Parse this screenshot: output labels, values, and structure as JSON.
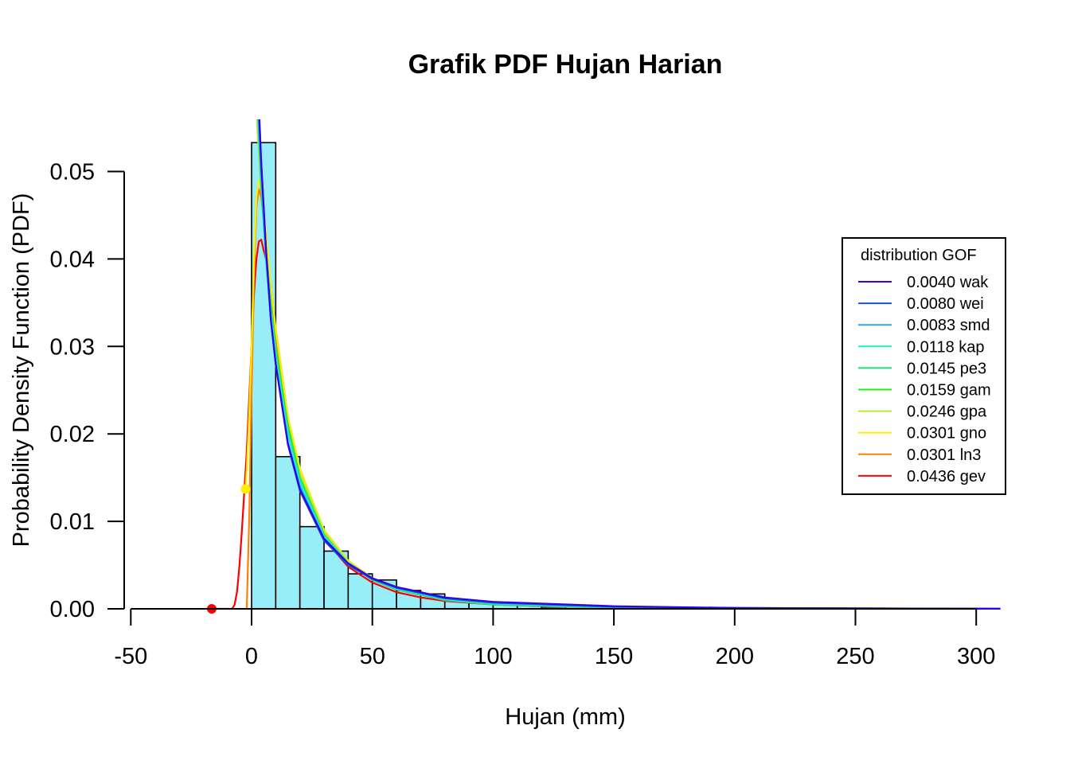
{
  "chart_data": {
    "type": "histogram-with-density-lines",
    "title": "Grafik PDF Hujan Harian",
    "xlabel": "Hujan (mm)",
    "ylabel": "Probability Density Function (PDF)",
    "xlim": [
      -50,
      310
    ],
    "ylim": [
      0,
      0.055
    ],
    "x_ticks": [
      -50,
      0,
      50,
      100,
      150,
      200,
      250,
      300
    ],
    "x_tick_labels": [
      "-50",
      "0",
      "50",
      "100",
      "150",
      "200",
      "250",
      "300"
    ],
    "y_ticks": [
      0,
      0.01,
      0.02,
      0.03,
      0.04,
      0.05
    ],
    "y_tick_labels": [
      "0.00",
      "0.01",
      "0.02",
      "0.03",
      "0.04",
      "0.05"
    ],
    "histogram": {
      "fill": "#98eef8",
      "bins": [
        {
          "x0": 0,
          "x1": 10,
          "density": 0.0533
        },
        {
          "x0": 10,
          "x1": 20,
          "density": 0.0174
        },
        {
          "x0": 20,
          "x1": 30,
          "density": 0.0094
        },
        {
          "x0": 30,
          "x1": 40,
          "density": 0.0066
        },
        {
          "x0": 40,
          "x1": 50,
          "density": 0.004
        },
        {
          "x0": 50,
          "x1": 60,
          "density": 0.0033
        },
        {
          "x0": 60,
          "x1": 70,
          "density": 0.0021
        },
        {
          "x0": 70,
          "x1": 80,
          "density": 0.0017
        },
        {
          "x0": 80,
          "x1": 90,
          "density": 0.001
        },
        {
          "x0": 90,
          "x1": 100,
          "density": 0.0008
        },
        {
          "x0": 100,
          "x1": 110,
          "density": 0.0006
        },
        {
          "x0": 110,
          "x1": 120,
          "density": 0.0004
        },
        {
          "x0": 120,
          "x1": 130,
          "density": 0.0002
        },
        {
          "x0": 130,
          "x1": 140,
          "density": 0.0002
        },
        {
          "x0": 140,
          "x1": 150,
          "density": 0.0001
        },
        {
          "x0": 150,
          "x1": 160,
          "density": 0.0001
        },
        {
          "x0": 160,
          "x1": 170,
          "density": 0.0001
        },
        {
          "x0": 170,
          "x1": 180,
          "density": 0.0001
        },
        {
          "x0": 180,
          "x1": 190,
          "density": 0.0
        },
        {
          "x0": 190,
          "x1": 200,
          "density": 0.0
        },
        {
          "x0": 200,
          "x1": 210,
          "density": 0.0
        },
        {
          "x0": 210,
          "x1": 220,
          "density": 0.0
        },
        {
          "x0": 220,
          "x1": 230,
          "density": 0.0
        },
        {
          "x0": 230,
          "x1": 240,
          "density": 0.0
        },
        {
          "x0": 240,
          "x1": 250,
          "density": 0.0
        },
        {
          "x0": 250,
          "x1": 260,
          "density": 0.0
        },
        {
          "x0": 260,
          "x1": 270,
          "density": 0.0
        },
        {
          "x0": 270,
          "x1": 280,
          "density": 0.0
        }
      ]
    },
    "series": [
      {
        "name": "0.0436 gev",
        "color": "#ff0000",
        "x": [
          -16,
          -10,
          -8,
          -7,
          -6,
          -5,
          -4,
          -3,
          -2,
          -1,
          0,
          1,
          2,
          3,
          4,
          5,
          6,
          7,
          8,
          10,
          12,
          15,
          18,
          20,
          25,
          30,
          40,
          50,
          60,
          70,
          80,
          100,
          120,
          150,
          200,
          250,
          280
        ],
        "y": [
          0,
          0,
          0,
          0.0005,
          0.002,
          0.005,
          0.009,
          0.0135,
          0.018,
          0.024,
          0.03,
          0.036,
          0.04,
          0.042,
          0.0422,
          0.041,
          0.04,
          0.039,
          0.037,
          0.032,
          0.028,
          0.022,
          0.017,
          0.015,
          0.011,
          0.008,
          0.0048,
          0.003,
          0.0019,
          0.0013,
          0.0009,
          0.0005,
          0.0003,
          0.00015,
          5e-05,
          2e-05,
          1e-05
        ]
      },
      {
        "name": "0.0301 ln3",
        "color": "#ff8000",
        "x": [
          -2,
          -1,
          0,
          1,
          2,
          3,
          4,
          6,
          8,
          10,
          15,
          20,
          30,
          40,
          50,
          60,
          80,
          100,
          150,
          200,
          300
        ],
        "y": [
          0,
          0.01,
          0.025,
          0.038,
          0.046,
          0.048,
          0.047,
          0.042,
          0.036,
          0.031,
          0.022,
          0.016,
          0.009,
          0.0055,
          0.0035,
          0.0023,
          0.0011,
          0.0006,
          0.0002,
          7e-05,
          1e-05
        ]
      },
      {
        "name": "0.0301 gno",
        "color": "#ffee00",
        "x": [
          -2.5,
          -2,
          -1,
          0,
          1,
          2,
          3,
          4,
          6,
          8,
          10,
          15,
          20,
          30,
          40,
          50,
          60,
          80,
          100,
          150,
          200,
          300
        ],
        "y": [
          0.0137,
          0.016,
          0.022,
          0.03,
          0.04,
          0.047,
          0.049,
          0.048,
          0.043,
          0.037,
          0.032,
          0.022,
          0.016,
          0.009,
          0.0055,
          0.0035,
          0.0023,
          0.0011,
          0.0006,
          0.0002,
          7e-05,
          1e-05
        ]
      },
      {
        "name": "0.0246 gpa",
        "color": "#b4ee33",
        "x": [
          0,
          1,
          2,
          3,
          4,
          6,
          8,
          10,
          15,
          20,
          30,
          40,
          50,
          60,
          80,
          100,
          150,
          200,
          300
        ],
        "y": [
          0.068,
          0.062,
          0.057,
          0.052,
          0.048,
          0.041,
          0.035,
          0.03,
          0.021,
          0.0155,
          0.0088,
          0.0054,
          0.0035,
          0.0024,
          0.0012,
          0.0006,
          0.0002,
          7e-05,
          1e-05
        ]
      },
      {
        "name": "0.0159 gam",
        "color": "#22ee22",
        "x": [
          0.5,
          1,
          2,
          3,
          4,
          6,
          8,
          10,
          15,
          20,
          30,
          40,
          50,
          60,
          80,
          100,
          150,
          200,
          310
        ],
        "y": [
          0.09,
          0.075,
          0.062,
          0.055,
          0.049,
          0.041,
          0.035,
          0.03,
          0.021,
          0.015,
          0.0085,
          0.0052,
          0.0033,
          0.0022,
          0.001,
          0.0005,
          0.0001,
          3e-05,
          5e-06
        ]
      },
      {
        "name": "0.0145 pe3",
        "color": "#22dd77",
        "x": [
          0.5,
          1,
          2,
          3,
          4,
          6,
          8,
          10,
          15,
          20,
          30,
          40,
          50,
          60,
          80,
          100,
          150,
          200,
          310
        ],
        "y": [
          0.088,
          0.074,
          0.061,
          0.054,
          0.048,
          0.04,
          0.034,
          0.029,
          0.0205,
          0.0148,
          0.0084,
          0.0052,
          0.0033,
          0.0022,
          0.001,
          0.0005,
          0.0001,
          3e-05,
          5e-06
        ]
      },
      {
        "name": "0.0118 kap",
        "color": "#22eecc",
        "x": [
          1,
          2,
          3,
          4,
          6,
          8,
          10,
          15,
          20,
          30,
          40,
          50,
          60,
          80,
          100,
          150,
          200,
          310
        ],
        "y": [
          0.07,
          0.06,
          0.055,
          0.05,
          0.041,
          0.034,
          0.029,
          0.02,
          0.0145,
          0.0083,
          0.0052,
          0.0034,
          0.0023,
          0.0011,
          0.0006,
          0.0002,
          6e-05,
          1e-05
        ]
      },
      {
        "name": "0.0083 smd",
        "color": "#22aaff",
        "x": [
          1,
          2,
          3,
          4,
          6,
          8,
          10,
          15,
          20,
          30,
          40,
          50,
          60,
          80,
          100,
          150,
          200,
          310
        ],
        "y": [
          0.075,
          0.063,
          0.056,
          0.05,
          0.04,
          0.033,
          0.028,
          0.019,
          0.014,
          0.0081,
          0.0052,
          0.0035,
          0.0024,
          0.0012,
          0.0007,
          0.0002,
          8e-05,
          1e-05
        ]
      },
      {
        "name": "0.0080 wei",
        "color": "#1a55cc",
        "x": [
          1,
          2,
          3,
          4,
          6,
          8,
          10,
          15,
          20,
          30,
          40,
          50,
          60,
          80,
          100,
          150,
          200,
          310
        ],
        "y": [
          0.08,
          0.066,
          0.058,
          0.051,
          0.041,
          0.033,
          0.028,
          0.0188,
          0.0135,
          0.0078,
          0.005,
          0.0034,
          0.0024,
          0.0012,
          0.0007,
          0.00025,
          0.0001,
          1e-05
        ]
      },
      {
        "name": "0.0040 wak",
        "color": "#3300ee",
        "x": [
          1.5,
          2,
          3,
          4,
          6,
          8,
          10,
          15,
          20,
          30,
          40,
          50,
          60,
          80,
          100,
          150,
          200,
          310
        ],
        "y": [
          0.07,
          0.064,
          0.057,
          0.051,
          0.041,
          0.033,
          0.028,
          0.019,
          0.0137,
          0.008,
          0.0052,
          0.0035,
          0.0025,
          0.0013,
          0.0008,
          0.0003,
          0.0001,
          1e-05
        ]
      }
    ],
    "markers": [
      {
        "x": -16.5,
        "y": 0.0,
        "color": "#ff0000"
      },
      {
        "x": -2.5,
        "y": 0.0137,
        "color": "#ffee00"
      }
    ],
    "legend": {
      "title": "distribution GOF",
      "placement": "right",
      "order": [
        "0.0040 wak",
        "0.0080 wei",
        "0.0083 smd",
        "0.0118 kap",
        "0.0145 pe3",
        "0.0159 gam",
        "0.0246 gpa",
        "0.0301 gno",
        "0.0301 ln3",
        "0.0436 gev"
      ]
    }
  }
}
